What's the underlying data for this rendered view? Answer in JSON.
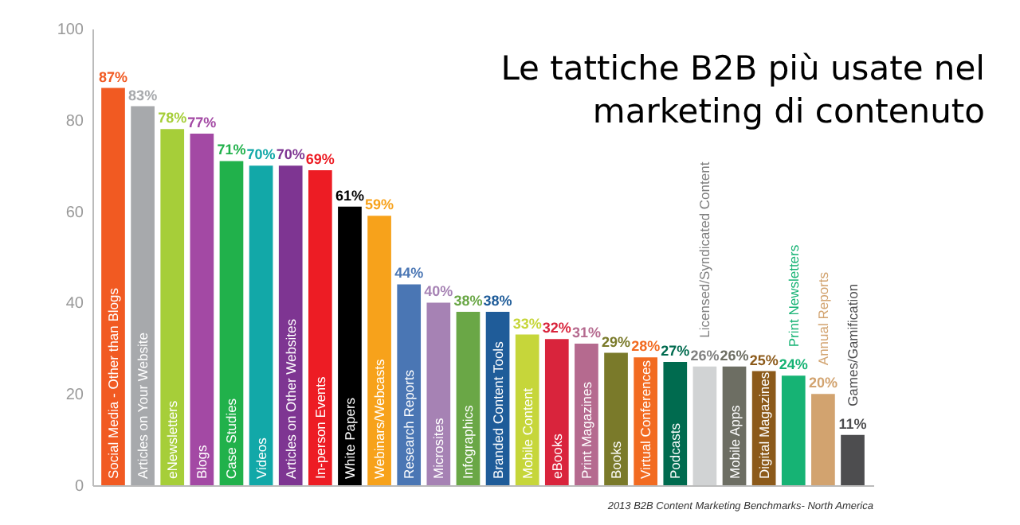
{
  "chart_data": {
    "type": "bar",
    "title": "Le tattiche B2B più usate nel marketing di contenuto",
    "categories": [
      "Social Media - Other than Blogs",
      "Articles on Your Website",
      "eNewsletters",
      "Blogs",
      "Case Studies",
      "Videos",
      "Articles on Other Websites",
      "In-person Events",
      "White Papers",
      "Webinars/Webcasts",
      "Research Reports",
      "Microsites",
      "Infographics",
      "Branded Content Tools",
      "Mobile Content",
      "eBooks",
      "Print Magazines",
      "Books",
      "Virtual Conferences",
      "Podcasts",
      "Licensed/Syndicated Content",
      "Mobile Apps",
      "Digital Magazines",
      "Print Newsletters",
      "Annual Reports",
      "Games/Gamification"
    ],
    "values": [
      87,
      83,
      78,
      77,
      71,
      70,
      70,
      69,
      61,
      59,
      44,
      40,
      38,
      38,
      33,
      32,
      31,
      29,
      28,
      27,
      26,
      26,
      25,
      24,
      20,
      11
    ],
    "value_labels": [
      "87%",
      "83%",
      "78%",
      "77%",
      "71%",
      "70%",
      "70%",
      "69%",
      "61%",
      "59%",
      "44%",
      "40%",
      "38%",
      "38%",
      "33%",
      "32%",
      "31%",
      "29%",
      "28%",
      "27%",
      "26%",
      "26%",
      "25%",
      "24%",
      "20%",
      "11%"
    ],
    "colors": [
      "#f15a22",
      "#a7a9ac",
      "#a6ce39",
      "#a349a4",
      "#21b14b",
      "#12a8a8",
      "#7e3592",
      "#ed1c24",
      "#000000",
      "#f7a21b",
      "#4a76b4",
      "#a682b4",
      "#6aa746",
      "#1f5c99",
      "#c6d63a",
      "#d9243c",
      "#b56a8f",
      "#7a7a2a",
      "#f26b21",
      "#006b4f",
      "#d1d3d4",
      "#6d6e63",
      "#8c5a1a",
      "#16b374",
      "#d2a36f",
      "#4d4d4f"
    ],
    "ylim": [
      0,
      100
    ],
    "yticks": [
      0,
      20,
      40,
      60,
      80,
      100
    ],
    "grid": false,
    "annotations": [
      "2013 B2B Content Marketing Benchmarks- North America"
    ]
  }
}
